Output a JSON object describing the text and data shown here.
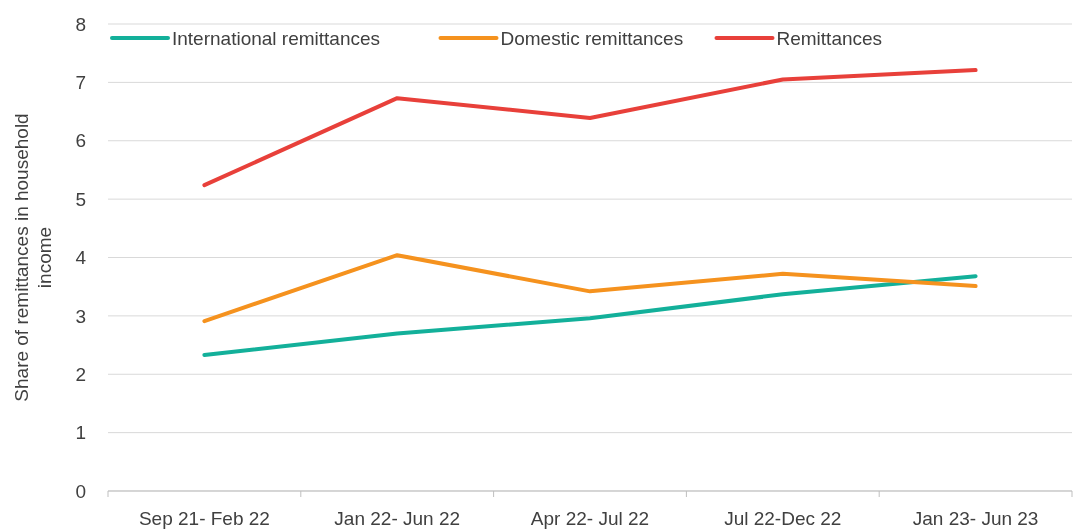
{
  "chart_data": {
    "type": "line",
    "ylabel": "Share of remittances in household income",
    "categories": [
      "Sep 21- Feb 22",
      "Jan 22- Jun 22",
      "Apr 22- Jul 22",
      "Jul 22-Dec 22",
      "Jan 23- Jun 23"
    ],
    "series": [
      {
        "name": "International remittances",
        "color": "#13b09a",
        "values": [
          2.33,
          2.7,
          2.96,
          3.37,
          3.68
        ]
      },
      {
        "name": "Domestic remittances",
        "color": "#f5921e",
        "values": [
          2.91,
          4.04,
          3.42,
          3.72,
          3.51
        ]
      },
      {
        "name": "Remittances",
        "color": "#e8403a",
        "values": [
          5.24,
          6.73,
          6.39,
          7.05,
          7.21
        ]
      }
    ],
    "ylim": [
      0,
      8
    ],
    "yticks": [
      0,
      1,
      2,
      3,
      4,
      5,
      6,
      7,
      8
    ],
    "grid": "y",
    "legend": "top left",
    "marker": "none",
    "line_style": "solid"
  }
}
